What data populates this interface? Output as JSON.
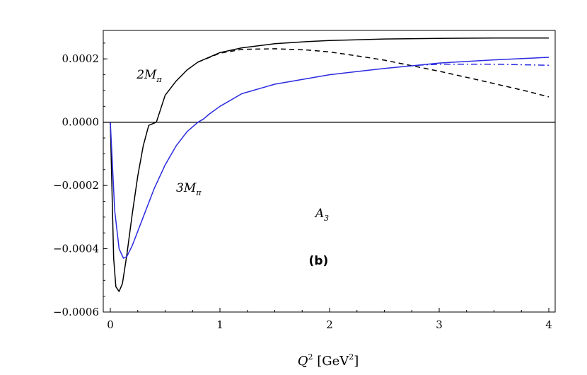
{
  "chart_data": {
    "type": "line",
    "xlabel": {
      "var": "Q",
      "exp": "2",
      "unit_pre": " [GeV",
      "unit_exp": "2",
      "unit_post": "]"
    },
    "ylabel": "",
    "xlim": [
      0,
      4.07
    ],
    "ylim": [
      -0.0006,
      0.00029
    ],
    "x_ticks": [
      {
        "value": 0,
        "label": "0"
      },
      {
        "value": 1,
        "label": "1"
      },
      {
        "value": 2,
        "label": "2"
      },
      {
        "value": 3,
        "label": "3"
      },
      {
        "value": 4,
        "label": "4"
      }
    ],
    "y_ticks": [
      {
        "value": 0.0002,
        "label": "0.0002"
      },
      {
        "value": 0.0,
        "label": "0.0000"
      },
      {
        "value": -0.0002,
        "label": "−0.0002"
      },
      {
        "value": -0.0004,
        "label": "−0.0004"
      },
      {
        "value": -0.0006,
        "label": "−0.0006"
      }
    ],
    "zero_line": true,
    "series": [
      {
        "color": "#000000",
        "dash": "solid",
        "x": [
          0.0,
          0.03,
          0.05,
          0.08,
          0.11,
          0.15,
          0.2,
          0.25,
          0.3,
          0.35,
          0.42,
          0.5,
          0.6,
          0.7,
          0.8,
          1.0,
          1.2,
          1.5,
          1.8,
          2.0,
          2.5,
          3.0,
          3.5,
          4.0
        ],
        "y": [
          0.0,
          -0.00043,
          -0.00052,
          -0.000535,
          -0.00051,
          -0.00042,
          -0.00029,
          -0.00017,
          -7.5e-05,
          -1e-05,
          0.0,
          8.5e-05,
          0.00013,
          0.000165,
          0.00019,
          0.00022,
          0.000235,
          0.000248,
          0.000255,
          0.000258,
          0.000263,
          0.000265,
          0.000266,
          0.000266
        ]
      },
      {
        "color": "#000000",
        "dash": "dashed",
        "x": [
          0.8,
          1.0,
          1.2,
          1.5,
          1.8,
          2.0,
          2.3,
          2.5,
          2.8,
          3.0,
          3.3,
          3.5,
          3.8,
          4.0
        ],
        "y": [
          0.00019,
          0.000218,
          0.00023,
          0.000232,
          0.000228,
          0.000222,
          0.000207,
          0.000196,
          0.000175,
          0.000161,
          0.000138,
          0.000122,
          9.8e-05,
          8e-05
        ]
      },
      {
        "color": "#2a2ae0",
        "dash": "solid",
        "x": [
          0.0,
          0.04,
          0.08,
          0.12,
          0.15,
          0.2,
          0.3,
          0.4,
          0.5,
          0.6,
          0.7,
          0.8,
          0.85,
          0.9,
          1.0,
          1.2,
          1.5,
          2.0,
          2.5,
          2.8,
          3.0,
          3.5,
          4.0
        ],
        "y": [
          0.0,
          -0.00028,
          -0.0004,
          -0.00043,
          -0.000425,
          -0.00039,
          -0.0003,
          -0.00021,
          -0.000135,
          -7.5e-05,
          -3e-05,
          0.0,
          1e-05,
          2.5e-05,
          5e-05,
          9e-05,
          0.00012,
          0.00015,
          0.00017,
          0.00018,
          0.000187,
          0.000197,
          0.000205
        ]
      },
      {
        "color": "#2a2ae0",
        "dash": "dashdot",
        "x": [
          2.8,
          3.0,
          3.5,
          4.0
        ],
        "y": [
          0.00018,
          0.000183,
          0.000183,
          0.00018
        ]
      }
    ],
    "annotations": [
      {
        "id": "label-2mpi",
        "text": "2M",
        "sub": "π",
        "x": 0.24,
        "y": 0.000138,
        "style": "anno"
      },
      {
        "id": "label-3mpi",
        "text": "3M",
        "sub": "π",
        "x": 0.6,
        "y": -0.00022,
        "style": "anno"
      },
      {
        "id": "label-a3",
        "text": "A",
        "sub": "3",
        "x": 1.87,
        "y": -0.0003,
        "style": "anno"
      },
      {
        "id": "label-panel",
        "text": "(b)",
        "sub": "",
        "x": 1.81,
        "y": -0.00045,
        "style": "panel"
      }
    ]
  }
}
